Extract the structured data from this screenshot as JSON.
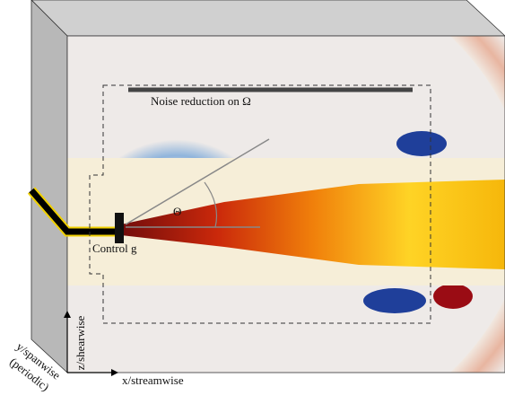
{
  "labels": {
    "noise": "Noise reduction on Ω",
    "angle": "Θ",
    "control": "Control g",
    "z_axis": "z/shearwise",
    "y_axis": "y/spanwise",
    "y_axis_note": "(periodic)",
    "x_axis": "x/streamwise"
  }
}
